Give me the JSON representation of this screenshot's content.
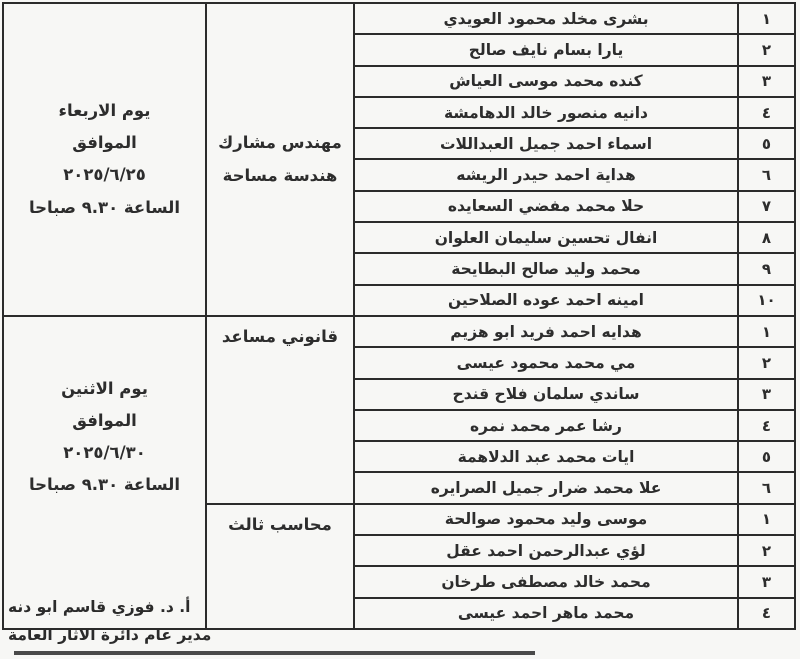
{
  "document": {
    "background_color": "#f7f7f5",
    "border_color": "#2b2b2b",
    "text_color": "#2d2d2d"
  },
  "table": {
    "schedules": [
      {
        "lines": [
          "يوم الاربعاء",
          "الموافق",
          "٢٠٢٥/٦/٢٥",
          "الساعة ٩.٣٠ صباحا"
        ]
      },
      {
        "lines": [
          "يوم الاثنين",
          "الموافق",
          "٢٠٢٥/٦/٣٠",
          "الساعة ٩.٣٠ صباحا"
        ]
      }
    ],
    "sections": [
      {
        "job_title": "مهندس مشارك هندسة مساحة",
        "job_lines": [
          "مهندس مشارك",
          "هندسة مساحة"
        ],
        "rows": [
          {
            "num": "١",
            "name": "بشرى مخلد محمود العويدي"
          },
          {
            "num": "٢",
            "name": "يارا بسام نايف صالح"
          },
          {
            "num": "٣",
            "name": "كنده محمد موسى العياش"
          },
          {
            "num": "٤",
            "name": "دانيه منصور خالد الدهامشة"
          },
          {
            "num": "٥",
            "name": "اسماء احمد جميل العبداللات"
          },
          {
            "num": "٦",
            "name": "هداية احمد حيدر الريشه"
          },
          {
            "num": "٧",
            "name": "حلا محمد مفضي السعايده"
          },
          {
            "num": "٨",
            "name": "انفال تحسين سليمان العلوان"
          },
          {
            "num": "٩",
            "name": "محمد وليد صالح البطايحة"
          },
          {
            "num": "١٠",
            "name": "امينه احمد عوده الصلاحين"
          }
        ]
      },
      {
        "job_title": "قانوني مساعد",
        "job_lines": [
          "قانوني مساعد"
        ],
        "rows": [
          {
            "num": "١",
            "name": "هدايه احمد فريد ابو هزيم"
          },
          {
            "num": "٢",
            "name": "مي محمد محمود عيسى"
          },
          {
            "num": "٣",
            "name": "ساندي سلمان فلاح قندح"
          },
          {
            "num": "٤",
            "name": "رشا عمر محمد نمره"
          },
          {
            "num": "٥",
            "name": "ايات محمد عبد الدلاهمة"
          },
          {
            "num": "٦",
            "name": "علا محمد ضرار جميل الصرايره"
          }
        ]
      },
      {
        "job_title": "محاسب ثالث",
        "job_lines": [
          "محاسب ثالث"
        ],
        "rows": [
          {
            "num": "١",
            "name": "موسى وليد محمود صوالحة"
          },
          {
            "num": "٢",
            "name": "لؤي عبدالرحمن احمد عقل"
          },
          {
            "num": "٣",
            "name": "محمد خالد مصطفى طرخان"
          },
          {
            "num": "٤",
            "name": "محمد ماهر احمد عيسى"
          }
        ]
      }
    ]
  },
  "signature": {
    "name": "أ. د. فوزي قاسم ابو دنه",
    "title": "مدير عام دائرة الاثار العامة"
  }
}
